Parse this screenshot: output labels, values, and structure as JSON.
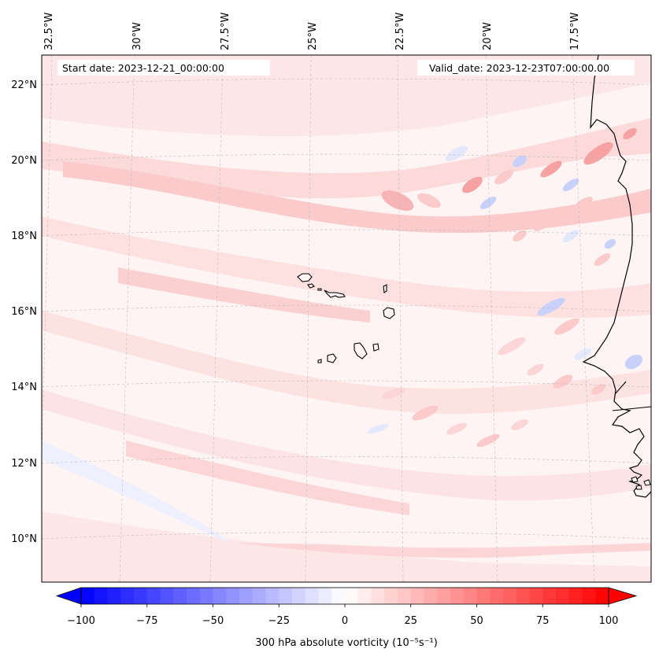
{
  "header": {
    "start_date": "Start date: 2023-12-21_00:00:00",
    "valid_date": "Valid_date: 2023-12-23T07:00:00.00"
  },
  "map": {
    "lon_labels": [
      "32.5°W",
      "30°W",
      "27.5°W",
      "25°W",
      "22.5°W",
      "20°W",
      "17.5°W"
    ],
    "lat_labels": [
      "22°N",
      "20°N",
      "18°N",
      "16°N",
      "14°N",
      "12°N",
      "10°N"
    ],
    "extent": {
      "lon": [
        -32.6,
        -15.2
      ],
      "lat": [
        8.9,
        22.8
      ]
    },
    "gridlines": true,
    "field_colors": {
      "light_red": "#fde3e3",
      "medium_red": "#fbcaca",
      "strong_red": "#f6a2a2",
      "light_blue": "#e4e8fd",
      "medium_blue": "#c9d0fa",
      "coastline": "#000000"
    }
  },
  "colorbar": {
    "ticks": [
      "−100",
      "−75",
      "−50",
      "−25",
      "0",
      "25",
      "50",
      "75",
      "100"
    ],
    "label": "300 hPa absolute vorticity (10⁻⁵s⁻¹)",
    "range": [
      -100,
      100
    ],
    "colors": {
      "min": "#0000ff",
      "mid": "#ffffff",
      "max": "#ff0000"
    }
  }
}
